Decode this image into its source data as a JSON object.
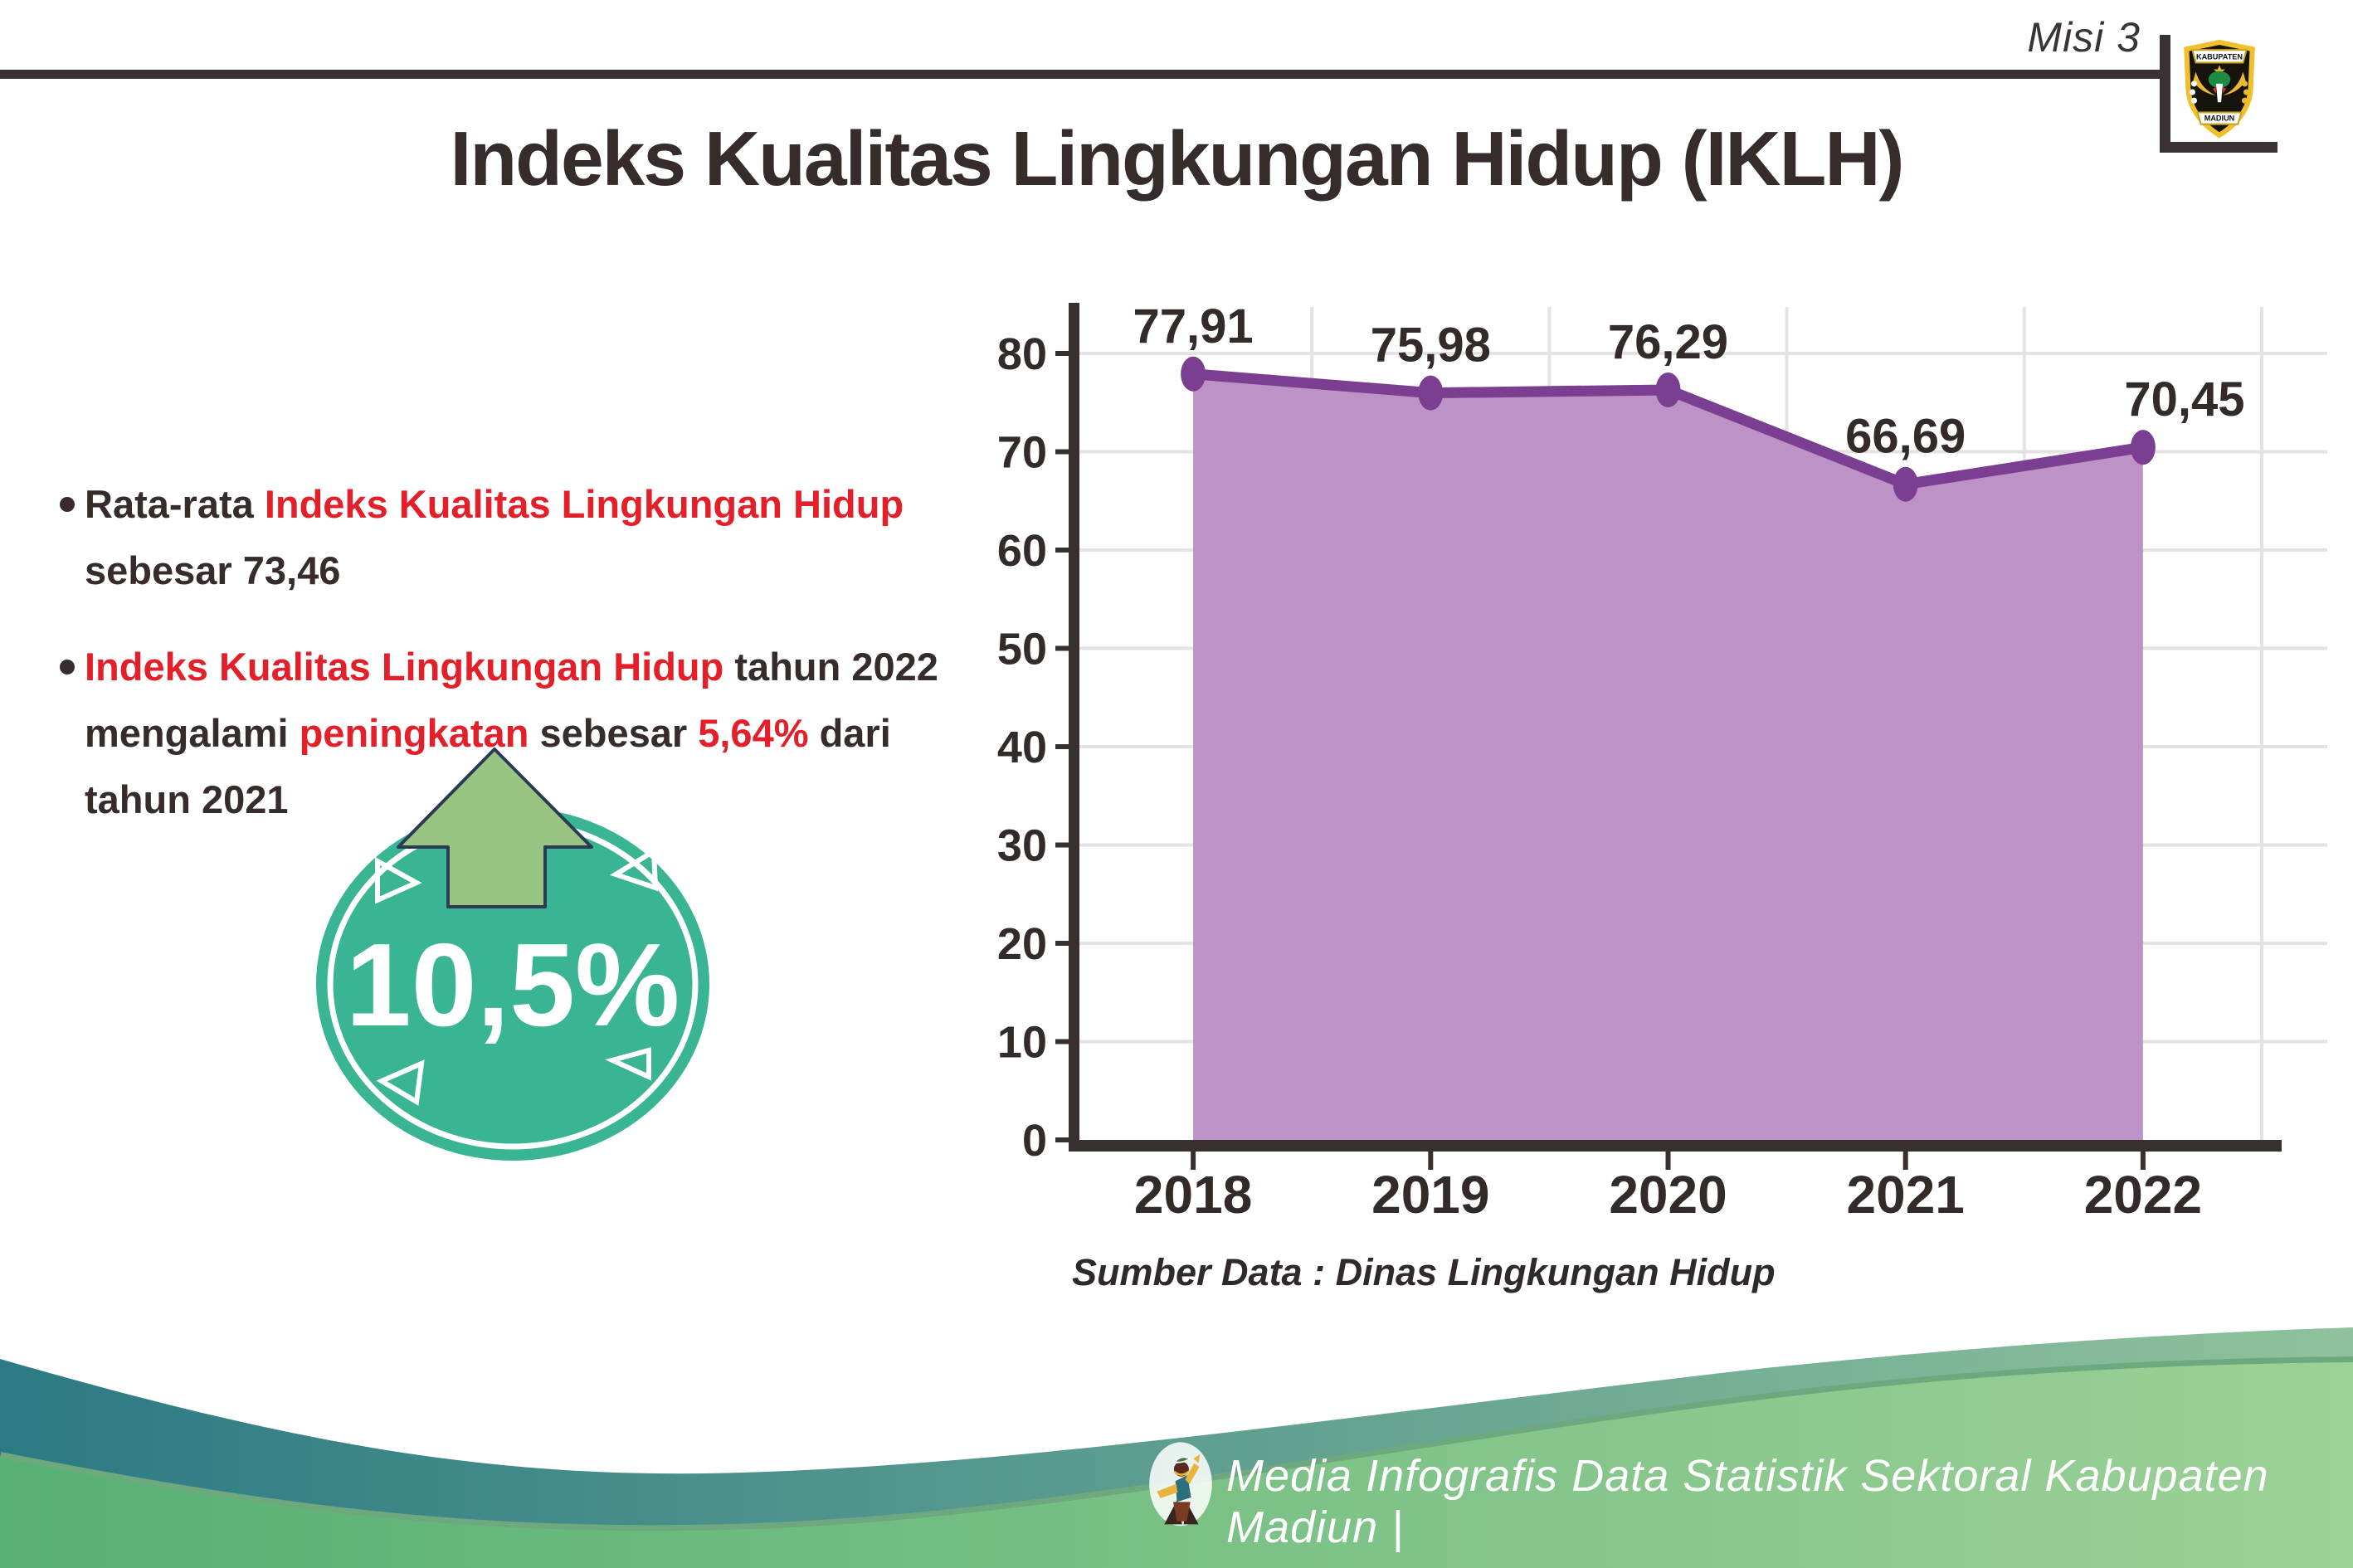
{
  "header": {
    "misi_label": "Misi 3",
    "title": "Indeks Kualitas Lingkungan Hidup (IKLH)",
    "logo": {
      "top_text": "KABUPATEN",
      "bottom_text": "MADIUN"
    }
  },
  "insights": {
    "bullet1": {
      "lead": "Rata-rata ",
      "highlight": "Indeks Kualitas Lingkungan Hidup",
      "line2": "sebesar 73,46"
    },
    "bullet2": {
      "highlight1": "Indeks Kualitas Lingkungan Hidup",
      "after1": " tahun 2022",
      "line2_a": "mengalami ",
      "line2_b": "peningkatan",
      "line2_c": " sebesar ",
      "line2_d": "5,64%",
      "line2_e": " dari",
      "line3": "tahun 2021"
    }
  },
  "badge": {
    "value": "10,5%"
  },
  "chart_data": {
    "type": "area",
    "title": "",
    "categories": [
      "2018",
      "2019",
      "2020",
      "2021",
      "2022"
    ],
    "values": [
      77.91,
      75.98,
      76.29,
      66.69,
      70.45
    ],
    "point_labels": [
      "77,91",
      "75,98",
      "76,29",
      "66,69",
      "70,45"
    ],
    "ylim": [
      0,
      80
    ],
    "ytick_step": 10,
    "grid": true,
    "legend": "none",
    "fill_color": "#bd92c7",
    "line_color": "#7c3e90",
    "source_note": "Sumber Data : Dinas Lingkungan Hidup"
  },
  "footer": {
    "credit": "Media Infografis Data Statistik Sektoral Kabupaten Madiun |"
  },
  "colors": {
    "accent_red": "#e3202a",
    "badge_teal": "#3ab593",
    "arrow_green": "#98c581",
    "text_dark": "#362c2b",
    "wave_teal": "#2c7a84",
    "wave_green": "#57b074"
  }
}
